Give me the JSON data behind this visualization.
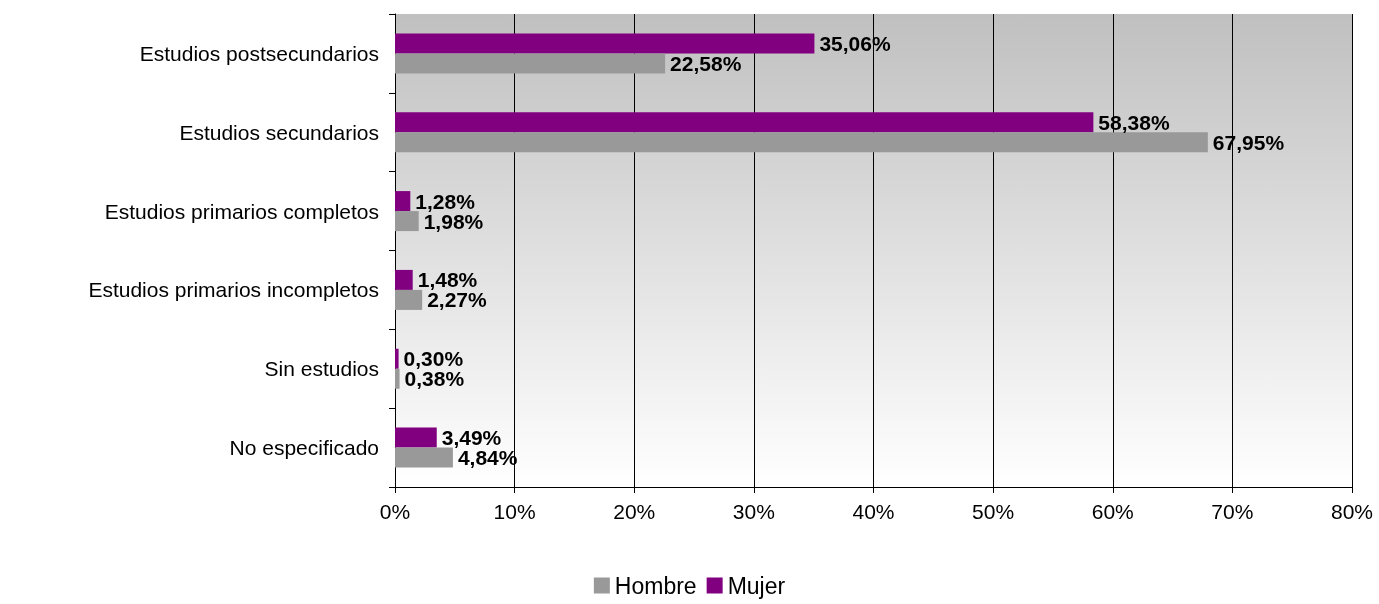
{
  "chart_data": {
    "type": "bar",
    "orientation": "horizontal",
    "categories": [
      "Estudios postsecundarios",
      "Estudios secundarios",
      "Estudios primarios completos",
      "Estudios primarios incompletos",
      "Sin estudios",
      "No especificado"
    ],
    "series": [
      {
        "name": "Hombre",
        "color": "#999999",
        "values": [
          22.58,
          67.95,
          1.98,
          2.27,
          0.38,
          4.84
        ],
        "value_labels": [
          "22,58%",
          "67,95%",
          "1,98%",
          "2,27%",
          "0,38%",
          "4,84%"
        ]
      },
      {
        "name": "Mujer",
        "color": "#800080",
        "values": [
          35.06,
          58.38,
          1.28,
          1.48,
          0.3,
          3.49
        ],
        "value_labels": [
          "35,06%",
          "58,38%",
          "1,28%",
          "1,48%",
          "0,30%",
          "3,49%"
        ]
      }
    ],
    "xlim": [
      0,
      80
    ],
    "xticks": [
      {
        "value": 0,
        "label": "0%"
      },
      {
        "value": 10,
        "label": "10%"
      },
      {
        "value": 20,
        "label": "20%"
      },
      {
        "value": 30,
        "label": "30%"
      },
      {
        "value": 40,
        "label": "40%"
      },
      {
        "value": 50,
        "label": "50%"
      },
      {
        "value": 60,
        "label": "60%"
      },
      {
        "value": 70,
        "label": "70%"
      },
      {
        "value": 80,
        "label": "80%"
      }
    ],
    "grid": "x",
    "legend": "bottom"
  }
}
